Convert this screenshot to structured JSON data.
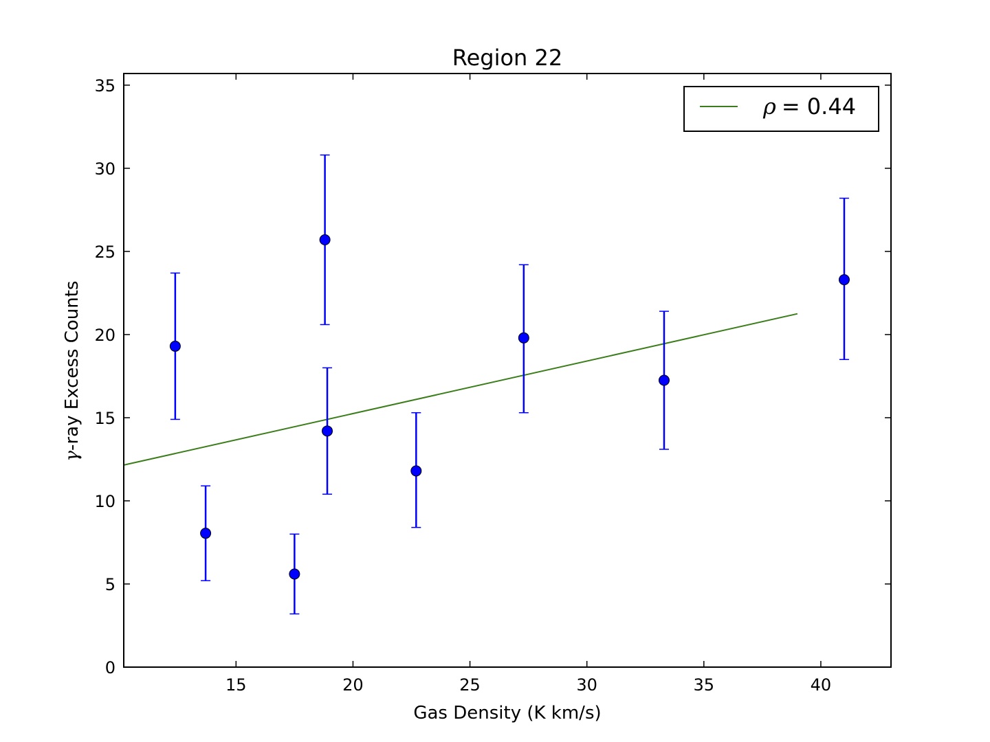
{
  "chart_data": {
    "type": "scatter",
    "title": "Region 22",
    "xlabel": "Gas Density (K km/s)",
    "ylabel_symbol": "γ",
    "ylabel_text": "-ray Excess Counts",
    "xlim": [
      10.2,
      43
    ],
    "ylim": [
      0,
      35.7
    ],
    "xticks": [
      15,
      20,
      25,
      30,
      35,
      40
    ],
    "yticks": [
      0,
      5,
      10,
      15,
      20,
      25,
      30,
      35
    ],
    "grid": false,
    "legend_position": "top-right",
    "series": [
      {
        "marker": "circle",
        "color": "#0000ff",
        "points": [
          {
            "x": 12.4,
            "y": 19.3,
            "yerr_low": 14.9,
            "yerr_high": 23.7
          },
          {
            "x": 13.7,
            "y": 8.05,
            "yerr_low": 5.2,
            "yerr_high": 10.9
          },
          {
            "x": 17.5,
            "y": 5.6,
            "yerr_low": 3.2,
            "yerr_high": 8.0
          },
          {
            "x": 18.8,
            "y": 25.7,
            "yerr_low": 20.6,
            "yerr_high": 30.8
          },
          {
            "x": 18.9,
            "y": 14.2,
            "yerr_low": 10.4,
            "yerr_high": 18.0
          },
          {
            "x": 22.7,
            "y": 11.8,
            "yerr_low": 8.4,
            "yerr_high": 15.3
          },
          {
            "x": 27.3,
            "y": 19.8,
            "yerr_low": 15.3,
            "yerr_high": 24.2
          },
          {
            "x": 33.3,
            "y": 17.25,
            "yerr_low": 13.1,
            "yerr_high": 21.4
          },
          {
            "x": 41.0,
            "y": 23.3,
            "yerr_low": 18.5,
            "yerr_high": 28.2
          }
        ]
      },
      {
        "name_symbol": "ρ",
        "name_text": "= 0.44",
        "type": "line",
        "color": "#3a7d1a",
        "x": [
          10.2,
          39.0
        ],
        "y": [
          12.15,
          21.25
        ]
      }
    ]
  }
}
